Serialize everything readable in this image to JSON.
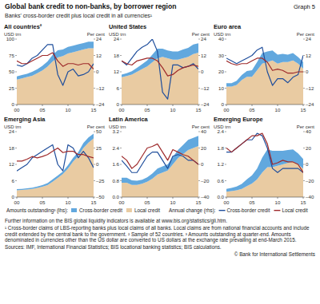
{
  "figure": {
    "title": "Global bank credit to non-banks, by borrower region",
    "graph_label": "Graph 5",
    "subtitle": "Banks' cross-border credit plus local credit in all currencies¹",
    "legend_groups": [
      "Amounts outstanding³ (lhs):",
      "Annual change (rhs):"
    ]
  },
  "note": "Further information on the BIS global liquidity indicators is available at www.bis.org/statistics/gli.htm.",
  "footnotes": [
    "¹ Cross-border claims of LBS-reporting banks plus local claims of all banks. Local claims are from national financial accounts and include credit extended by the central bank to the government.",
    "² Sample of 52 countries.",
    "³ Amounts outstanding at quarter-end. Amounts denominated in currencies other than the US dollar are converted to US dollars at the exchange rate prevailing at end-March 2015."
  ],
  "sources": "Sources: IMF, International Financial Statistics; BIS locational banking statistics; BIS calculations.",
  "copyright": "© Bank for International Settlements",
  "chart_data": [
    {
      "type": "area",
      "title": "All countries²",
      "ylabel": "USD trn",
      "y2label": "Per cent",
      "stacked": true,
      "grid": false,
      "x": [
        2000,
        2001,
        2002,
        2003,
        2004,
        2005,
        2006,
        2007,
        2008,
        2009,
        2010,
        2011,
        2012,
        2013,
        2014,
        2015
      ],
      "xlim": [
        2000,
        2015
      ],
      "xticks": [
        {
          "value": 2000,
          "label": "00"
        },
        {
          "value": 2005,
          "label": "05"
        },
        {
          "value": 2010,
          "label": "10"
        },
        {
          "value": 2015,
          "label": "15"
        }
      ],
      "ylim": [
        0,
        100
      ],
      "yticks": [
        0,
        25,
        50,
        75,
        100
      ],
      "y2lim": [
        -24,
        24
      ],
      "y2ticks": [
        {
          "value": -24,
          "label": "–24"
        },
        {
          "value": -12,
          "label": "–12"
        },
        0,
        12,
        24
      ],
      "series": [
        {
          "name": "Cross-border credit",
          "type": "area",
          "color": "#62a8de",
          "values": [
            5,
            5,
            5,
            6,
            6,
            7,
            8,
            10,
            11,
            10,
            10,
            10,
            10,
            10,
            10,
            10
          ]
        },
        {
          "name": "Local credit",
          "type": "area",
          "color": "#e9cba2",
          "values": [
            38,
            40,
            42,
            44,
            48,
            52,
            58,
            66,
            72,
            74,
            78,
            80,
            82,
            84,
            86,
            86
          ]
        },
        {
          "name": "Cross-border credit",
          "type": "line",
          "axis": "y2",
          "color": "#1f4e9c",
          "values": [
            5,
            4,
            6,
            10,
            12,
            16,
            20,
            20,
            -2,
            -10,
            0,
            2,
            -3,
            -2,
            0,
            6
          ]
        },
        {
          "name": "Local credit",
          "type": "line",
          "axis": "y2",
          "color": "#9e2a2b",
          "values": [
            8,
            6,
            6,
            8,
            10,
            12,
            12,
            14,
            8,
            4,
            6,
            6,
            5,
            6,
            6,
            2
          ]
        }
      ]
    },
    {
      "type": "area",
      "title": "United States",
      "ylabel": "USD trn",
      "y2label": "Per cent",
      "stacked": true,
      "grid": false,
      "x": [
        2000,
        2001,
        2002,
        2003,
        2004,
        2005,
        2006,
        2007,
        2008,
        2009,
        2010,
        2011,
        2012,
        2013,
        2014,
        2015
      ],
      "xlim": [
        2000,
        2015
      ],
      "xticks": [
        {
          "value": 2000,
          "label": "00"
        },
        {
          "value": 2005,
          "label": "05"
        },
        {
          "value": 2010,
          "label": "10"
        },
        {
          "value": 2015,
          "label": "15"
        }
      ],
      "ylim": [
        0,
        24
      ],
      "yticks": [
        0,
        6,
        12,
        18,
        24
      ],
      "y2lim": [
        -24,
        24
      ],
      "y2ticks": [
        {
          "value": -24,
          "label": "–24"
        },
        {
          "value": -12,
          "label": "–12"
        },
        0,
        12,
        24
      ],
      "series": [
        {
          "name": "Cross-border credit",
          "type": "area",
          "color": "#62a8de",
          "values": [
            1,
            1,
            1.2,
            1.5,
            1.8,
            2.2,
            2.8,
            3.5,
            3,
            2.8,
            3,
            3,
            3.2,
            3.3,
            3.5,
            3.5
          ]
        },
        {
          "name": "Local credit",
          "type": "area",
          "color": "#e9cba2",
          "values": [
            10,
            10.5,
            11,
            12,
            13,
            14,
            15.5,
            17,
            17.5,
            17,
            16.5,
            16.5,
            17,
            17.5,
            18.5,
            19
          ]
        },
        {
          "name": "Cross-border credit",
          "type": "line",
          "axis": "y2",
          "color": "#1f4e9c",
          "values": [
            8,
            5,
            10,
            15,
            18,
            20,
            24,
            15,
            -15,
            -20,
            5,
            5,
            3,
            4,
            6,
            2
          ]
        },
        {
          "name": "Local credit",
          "type": "line",
          "axis": "y2",
          "color": "#9e2a2b",
          "values": [
            8,
            6,
            5,
            8,
            9,
            10,
            10,
            8,
            3,
            -3,
            -2,
            1,
            3,
            4,
            5,
            4
          ]
        }
      ]
    },
    {
      "type": "area",
      "title": "Euro area",
      "ylabel": "USD trn",
      "y2label": "Per cent",
      "stacked": true,
      "grid": false,
      "x": [
        2000,
        2001,
        2002,
        2003,
        2004,
        2005,
        2006,
        2007,
        2008,
        2009,
        2010,
        2011,
        2012,
        2013,
        2014,
        2015
      ],
      "xlim": [
        2000,
        2015
      ],
      "xticks": [
        {
          "value": 2000,
          "label": "00"
        },
        {
          "value": 2005,
          "label": "05"
        },
        {
          "value": 2010,
          "label": "10"
        },
        {
          "value": 2015,
          "label": "15"
        }
      ],
      "ylim": [
        0,
        40
      ],
      "yticks": [
        0,
        10,
        20,
        30,
        40
      ],
      "y2lim": [
        -24,
        24
      ],
      "y2ticks": [
        {
          "value": -24,
          "label": "–24"
        },
        {
          "value": -12,
          "label": "–12"
        },
        0,
        12,
        24
      ],
      "series": [
        {
          "name": "Cross-border credit",
          "type": "area",
          "color": "#62a8de",
          "values": [
            2,
            2,
            2.5,
            3,
            3.5,
            4,
            5,
            6.5,
            6.5,
            6,
            5.5,
            5,
            4.5,
            4.5,
            4,
            4
          ]
        },
        {
          "name": "Local credit",
          "type": "area",
          "color": "#e9cba2",
          "values": [
            11,
            11,
            12,
            15,
            17,
            17,
            21,
            25,
            26,
            27,
            25,
            26,
            26,
            27,
            25,
            22
          ]
        },
        {
          "name": "Cross-border credit",
          "type": "line",
          "axis": "y2",
          "color": "#1f4e9c",
          "values": [
            10,
            8,
            6,
            8,
            10,
            12,
            16,
            18,
            0,
            -10,
            -5,
            -5,
            -8,
            -4,
            -2,
            12
          ]
        },
        {
          "name": "Local credit",
          "type": "line",
          "axis": "y2",
          "color": "#9e2a2b",
          "values": [
            8,
            6,
            5,
            6,
            6,
            8,
            10,
            10,
            7,
            1,
            2,
            1,
            -1,
            -1,
            0,
            0
          ]
        }
      ]
    },
    {
      "type": "area",
      "title": "Emerging Asia",
      "ylabel": "USD trn",
      "y2label": "Per cent",
      "stacked": true,
      "grid": false,
      "legend": "bottom",
      "x": [
        2000,
        2001,
        2002,
        2003,
        2004,
        2005,
        2006,
        2007,
        2008,
        2009,
        2010,
        2011,
        2012,
        2013,
        2014,
        2015
      ],
      "xlim": [
        2000,
        2015
      ],
      "xticks": [
        {
          "value": 2000,
          "label": "00"
        },
        {
          "value": 2005,
          "label": "05"
        },
        {
          "value": 2010,
          "label": "10"
        },
        {
          "value": 2015,
          "label": "15"
        }
      ],
      "ylim": [
        0,
        24
      ],
      "yticks": [
        0,
        6,
        12,
        18,
        24
      ],
      "y2lim": [
        -50,
        50
      ],
      "y2ticks": [
        {
          "value": -50,
          "label": "–50"
        },
        {
          "value": -25,
          "label": "–25"
        },
        0,
        25,
        50
      ],
      "series": [
        {
          "name": "Cross-border credit",
          "type": "area",
          "color": "#62a8de",
          "values": [
            0.4,
            0.4,
            0.4,
            0.45,
            0.5,
            0.6,
            0.7,
            0.9,
            0.9,
            0.9,
            1.2,
            1.4,
            1.5,
            1.8,
            1.9,
            1.8
          ]
        },
        {
          "name": "Local credit",
          "type": "area",
          "color": "#e9cba2",
          "values": [
            2.5,
            2.6,
            2.8,
            3,
            3.4,
            3.8,
            4.4,
            5.6,
            7,
            8.5,
            10.5,
            13,
            15,
            18,
            20,
            21.5
          ]
        },
        {
          "name": "Cross-border credit",
          "type": "line",
          "axis": "y2",
          "color": "#1f4e9c",
          "values": [
            -10,
            -5,
            0,
            10,
            15,
            20,
            25,
            30,
            0,
            -10,
            30,
            25,
            10,
            20,
            10,
            -5
          ]
        },
        {
          "name": "Local credit",
          "type": "line",
          "axis": "y2",
          "color": "#9e2a2b",
          "values": [
            5,
            5,
            8,
            12,
            10,
            12,
            15,
            20,
            25,
            18,
            20,
            20,
            15,
            15,
            12,
            10
          ]
        }
      ]
    },
    {
      "type": "area",
      "title": "Latin America",
      "ylabel": "USD trn",
      "y2label": "Per cent",
      "stacked": true,
      "grid": false,
      "x": [
        2000,
        2001,
        2002,
        2003,
        2004,
        2005,
        2006,
        2007,
        2008,
        2009,
        2010,
        2011,
        2012,
        2013,
        2014,
        2015
      ],
      "xlim": [
        2000,
        2015
      ],
      "xticks": [
        {
          "value": 2000,
          "label": "00"
        },
        {
          "value": 2005,
          "label": "05"
        },
        {
          "value": 2010,
          "label": "10"
        },
        {
          "value": 2015,
          "label": "15"
        }
      ],
      "ylim": [
        0,
        3.2
      ],
      "yticks": [
        {
          "value": 0,
          "label": "0.0"
        },
        0.8,
        1.6,
        2.4,
        3.2
      ],
      "y2lim": [
        -40,
        40
      ],
      "y2ticks": [
        {
          "value": -40,
          "label": "–40"
        },
        {
          "value": -20,
          "label": "–20"
        },
        0,
        20,
        40
      ],
      "series": [
        {
          "name": "Cross-border credit",
          "type": "area",
          "color": "#62a8de",
          "values": [
            0.25,
            0.25,
            0.22,
            0.2,
            0.2,
            0.22,
            0.25,
            0.3,
            0.3,
            0.3,
            0.35,
            0.4,
            0.45,
            0.5,
            0.5,
            0.5
          ]
        },
        {
          "name": "Local credit",
          "type": "area",
          "color": "#e9cba2",
          "values": [
            0.7,
            0.7,
            0.6,
            0.6,
            0.65,
            0.75,
            0.9,
            1.1,
            1.2,
            1.3,
            1.6,
            1.9,
            2.1,
            2.3,
            2.4,
            2.5
          ]
        },
        {
          "name": "Cross-border credit",
          "type": "line",
          "axis": "y2",
          "color": "#1f4e9c",
          "values": [
            5,
            -2,
            -10,
            -10,
            0,
            10,
            15,
            15,
            5,
            -5,
            10,
            12,
            10,
            5,
            5,
            0
          ]
        },
        {
          "name": "Local credit",
          "type": "line",
          "axis": "y2",
          "color": "#9e2a2b",
          "values": [
            10,
            5,
            -5,
            0,
            10,
            20,
            22,
            25,
            15,
            5,
            18,
            15,
            12,
            10,
            5,
            0
          ]
        }
      ]
    },
    {
      "type": "area",
      "title": "Emerging Europe",
      "ylabel": "USD trn",
      "y2label": "Per cent",
      "stacked": true,
      "grid": false,
      "x": [
        2000,
        2001,
        2002,
        2003,
        2004,
        2005,
        2006,
        2007,
        2008,
        2009,
        2010,
        2011,
        2012,
        2013,
        2014,
        2015
      ],
      "xlim": [
        2000,
        2015
      ],
      "xticks": [
        {
          "value": 2000,
          "label": "00"
        },
        {
          "value": 2005,
          "label": "05"
        },
        {
          "value": 2010,
          "label": "10"
        },
        {
          "value": 2015,
          "label": "15"
        }
      ],
      "ylim": [
        0,
        2.4
      ],
      "yticks": [
        {
          "value": 0,
          "label": "0.0"
        },
        0.6,
        1.2,
        1.8,
        2.4
      ],
      "y2lim": [
        -40,
        40
      ],
      "y2ticks": [
        {
          "value": -40,
          "label": "–40"
        },
        {
          "value": -20,
          "label": "–20"
        },
        0,
        20,
        40
      ],
      "series": [
        {
          "name": "Cross-border credit",
          "type": "area",
          "color": "#62a8de",
          "values": [
            0.1,
            0.12,
            0.14,
            0.18,
            0.25,
            0.3,
            0.4,
            0.55,
            0.65,
            0.6,
            0.55,
            0.5,
            0.48,
            0.45,
            0.4,
            0.35
          ]
        },
        {
          "name": "Local credit",
          "type": "area",
          "color": "#e9cba2",
          "values": [
            0.2,
            0.22,
            0.25,
            0.3,
            0.4,
            0.5,
            0.65,
            0.9,
            1.1,
            1.1,
            1.15,
            1.2,
            1.25,
            1.3,
            1.2,
            1.05
          ]
        },
        {
          "name": "Cross-border credit",
          "type": "line",
          "axis": "y2",
          "color": "#1f4e9c",
          "values": [
            15,
            15,
            20,
            25,
            30,
            30,
            38,
            35,
            20,
            -5,
            -10,
            -5,
            -5,
            -5,
            -5,
            -10
          ]
        },
        {
          "name": "Local credit",
          "type": "line",
          "axis": "y2",
          "color": "#9e2a2b",
          "values": [
            20,
            15,
            20,
            25,
            30,
            35,
            35,
            38,
            25,
            0,
            2,
            5,
            3,
            3,
            0,
            -10
          ]
        }
      ]
    }
  ]
}
